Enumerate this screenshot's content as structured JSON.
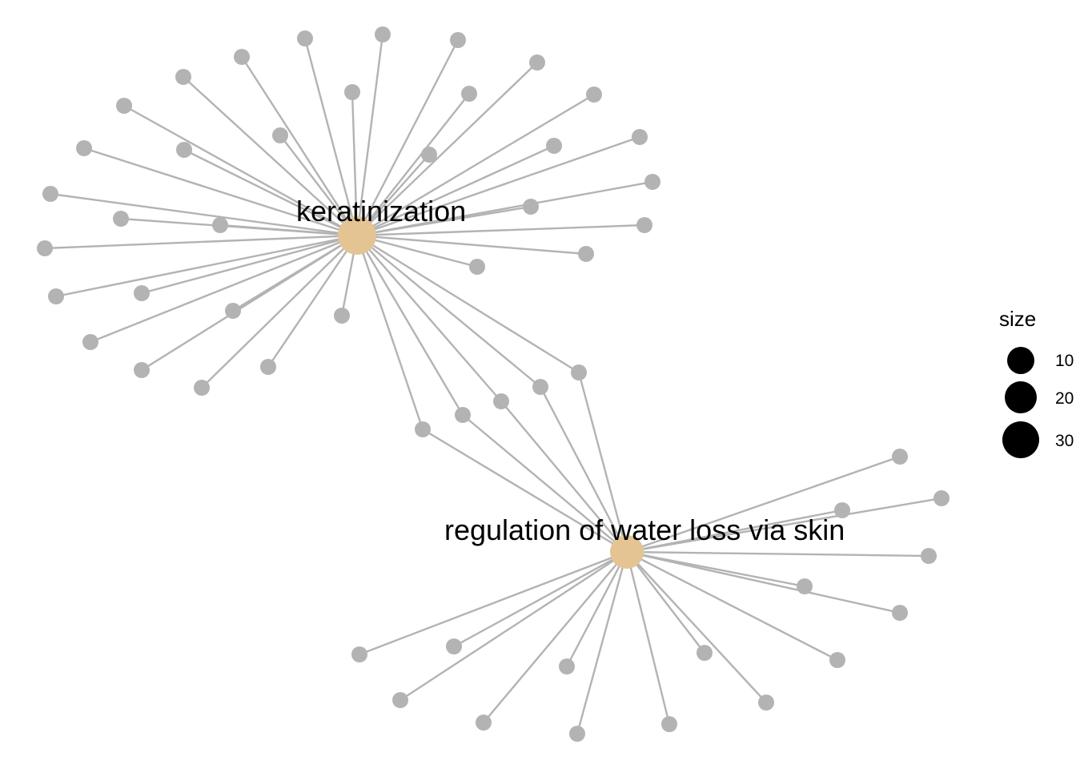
{
  "colors": {
    "background": "#ffffff",
    "edge": "#b3b3b3",
    "leaf_node": "#b3b3b3",
    "hub_node": "#e5c494",
    "legend_symbol": "#000000",
    "text": "#000000"
  },
  "hubs": [
    {
      "id": "keratinization",
      "label": "keratinization"
    },
    {
      "id": "regulation-of-water-loss-via-skin",
      "label": "regulation of water loss via skin"
    }
  ],
  "legend": {
    "title": "size",
    "entries": [
      {
        "label": "10",
        "value": 10
      },
      {
        "label": "20",
        "value": 20
      },
      {
        "label": "30",
        "value": 30
      }
    ]
  }
}
